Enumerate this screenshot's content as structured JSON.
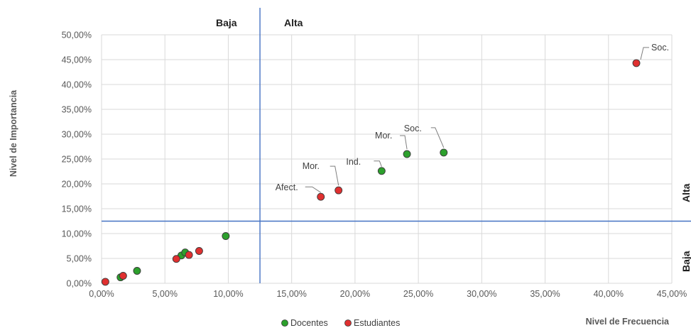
{
  "chart_data": {
    "type": "scatter",
    "xlabel": "Nivel de Frecuencia",
    "ylabel": "Nivel de Importancia",
    "xlim": [
      0,
      45
    ],
    "ylim": [
      0,
      50
    ],
    "x_ticks": [
      "0,00%",
      "5,00%",
      "10,00%",
      "15,00%",
      "20,00%",
      "25,00%",
      "30,00%",
      "35,00%",
      "40,00%",
      "45,00%"
    ],
    "y_ticks": [
      "0,00%",
      "5,00%",
      "10,00%",
      "15,00%",
      "20,00%",
      "25,00%",
      "30,00%",
      "35,00%",
      "40,00%",
      "45,00%",
      "50,00%"
    ],
    "grid": true,
    "legend_position": "bottom",
    "reference_lines": {
      "vertical_x": 12.5,
      "horizontal_y": 12.5,
      "color": "#4472c4"
    },
    "quadrant_labels": {
      "top_left": "Baja",
      "top_right": "Alta",
      "right_upper": "Alta",
      "right_lower": "Baja"
    },
    "series": [
      {
        "name": "Docentes",
        "color": "#2ca02c",
        "points": [
          {
            "x": 1.5,
            "y": 1.2
          },
          {
            "x": 2.8,
            "y": 2.5
          },
          {
            "x": 6.3,
            "y": 5.6
          },
          {
            "x": 6.6,
            "y": 6.2
          },
          {
            "x": 9.8,
            "y": 9.5
          },
          {
            "x": 22.1,
            "y": 22.6,
            "label": "Ind."
          },
          {
            "x": 24.1,
            "y": 26.0,
            "label": "Mor."
          },
          {
            "x": 27.0,
            "y": 26.3,
            "label": "Soc."
          }
        ]
      },
      {
        "name": "Estudiantes",
        "color": "#e03030",
        "points": [
          {
            "x": 0.3,
            "y": 0.3
          },
          {
            "x": 1.7,
            "y": 1.5
          },
          {
            "x": 5.9,
            "y": 4.9
          },
          {
            "x": 6.9,
            "y": 5.7
          },
          {
            "x": 7.7,
            "y": 6.5
          },
          {
            "x": 17.3,
            "y": 17.4,
            "label": "Afect."
          },
          {
            "x": 18.7,
            "y": 18.7,
            "label": "Mor."
          },
          {
            "x": 42.2,
            "y": 44.3,
            "label": "Soc."
          }
        ]
      }
    ]
  }
}
